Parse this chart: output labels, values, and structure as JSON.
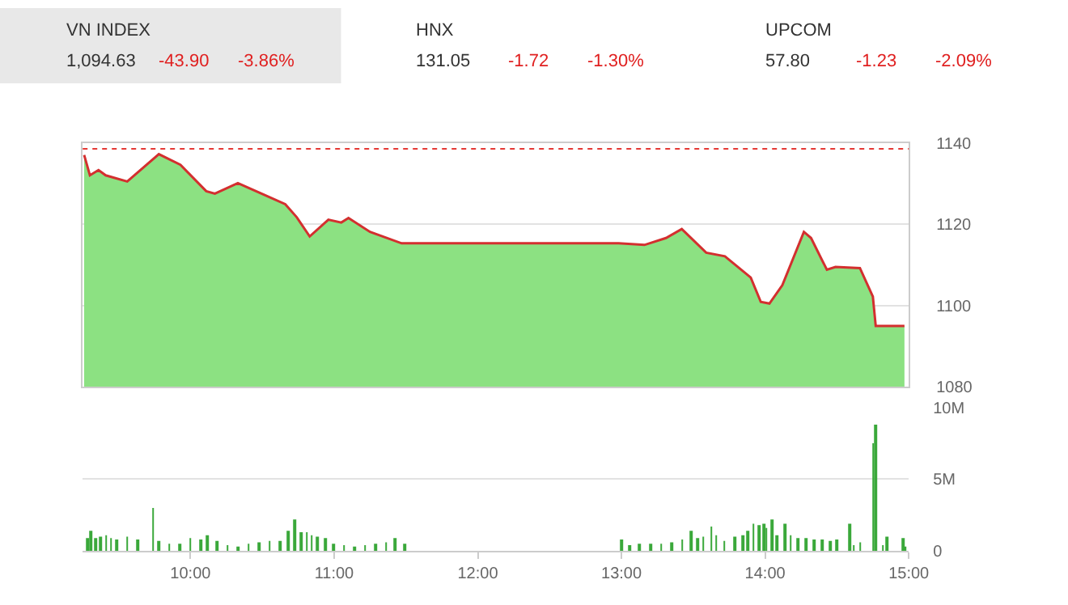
{
  "chart_data": [
    {
      "type": "other",
      "title": "VN INDEX",
      "annotations": [
        "1,094.63",
        "-43.90",
        "-3.86%"
      ]
    },
    {
      "type": "other",
      "title": "HNX",
      "annotations": [
        "131.05",
        "-1.72",
        "-1.30%"
      ]
    },
    {
      "type": "other",
      "title": "UPCOM",
      "annotations": [
        "57.80",
        "-1.23",
        "-2.09%"
      ]
    },
    {
      "type": "area",
      "x": [
        9.26,
        9.3,
        9.36,
        9.41,
        9.56,
        9.78,
        9.93,
        10.11,
        10.17,
        10.33,
        10.52,
        10.66,
        10.74,
        10.83,
        10.96,
        11.05,
        11.1,
        11.25,
        11.47,
        12.98,
        13.16,
        13.31,
        13.42,
        13.59,
        13.72,
        13.9,
        13.97,
        14.03,
        14.12,
        14.27,
        14.32,
        14.43,
        14.49,
        14.66,
        14.75,
        14.77,
        14.97
      ],
      "series": [
        {
          "color": "#8ce182",
          "values": [
            1137,
            1132,
            1133.3,
            1132,
            1130.5,
            1137.2,
            1134.6,
            1128.1,
            1127.5,
            1130.1,
            1127.1,
            1124.9,
            1121.7,
            1117,
            1121.1,
            1120.4,
            1121.5,
            1118.1,
            1115.3,
            1115.3,
            1114.9,
            1116.6,
            1118.8,
            1113,
            1112.1,
            1106.9,
            1100.9,
            1100.5,
            1105,
            1118.1,
            1116.6,
            1108.8,
            1109.5,
            1109.2,
            1102.2,
            1095,
            1095
          ]
        },
        {
          "type": "line",
          "color": "#d32f2f",
          "values": [
            1137,
            1132,
            1133.3,
            1132,
            1130.5,
            1137.2,
            1134.6,
            1128.1,
            1127.5,
            1130.1,
            1127.1,
            1124.9,
            1121.7,
            1117,
            1121.1,
            1120.4,
            1121.5,
            1118.1,
            1115.3,
            1115.3,
            1114.9,
            1116.6,
            1118.8,
            1113,
            1112.1,
            1106.9,
            1100.9,
            1100.5,
            1105,
            1118.1,
            1116.6,
            1108.8,
            1109.5,
            1109.2,
            1102.2,
            1095,
            1095
          ]
        }
      ],
      "xlim": [
        9.25,
        15.0
      ],
      "ylim": [
        1080,
        1140
      ],
      "yticks": [
        1080,
        1100,
        1120,
        1140
      ],
      "tick_labels": "y",
      "grid": "y",
      "ref_lines": [
        {
          "axis": "y",
          "value": 1138.5,
          "color": "#e53935",
          "line_style": "dotted"
        }
      ]
    },
    {
      "type": "bar",
      "x": [
        9.283,
        9.308,
        9.338,
        9.374,
        9.412,
        9.448,
        9.485,
        9.558,
        9.632,
        9.742,
        9.779,
        9.853,
        9.926,
        10.0,
        10.074,
        10.118,
        10.184,
        10.257,
        10.331,
        10.405,
        10.478,
        10.552,
        10.626,
        10.681,
        10.728,
        10.773,
        10.809,
        10.846,
        10.883,
        10.938,
        10.993,
        11.067,
        11.14,
        11.214,
        11.288,
        11.361,
        11.427,
        11.49,
        12.998,
        13.054,
        13.127,
        13.201,
        13.275,
        13.348,
        13.422,
        13.488,
        13.532,
        13.569,
        13.624,
        13.661,
        13.716,
        13.79,
        13.845,
        13.882,
        13.918,
        13.955,
        13.992,
        14.01,
        14.047,
        14.084,
        14.139,
        14.176,
        14.231,
        14.286,
        14.342,
        14.396,
        14.452,
        14.497,
        14.588,
        14.617,
        14.661,
        14.754,
        14.768,
        14.82,
        14.849,
        14.96,
        14.975
      ],
      "series": [
        {
          "color": "#3aa83a",
          "values": [
            0.9,
            1.4,
            0.9,
            1.0,
            1.1,
            0.9,
            0.8,
            1.0,
            0.8,
            3.0,
            0.7,
            0.5,
            0.5,
            0.9,
            0.8,
            1.1,
            0.7,
            0.4,
            0.3,
            0.5,
            0.6,
            0.7,
            0.7,
            1.4,
            2.2,
            1.3,
            1.3,
            1.1,
            1.0,
            0.9,
            0.5,
            0.4,
            0.3,
            0.4,
            0.5,
            0.6,
            0.9,
            0.5,
            0.8,
            0.4,
            0.5,
            0.5,
            0.5,
            0.6,
            0.8,
            1.4,
            0.9,
            1.0,
            1.7,
            1.1,
            0.7,
            1.0,
            1.1,
            1.4,
            1.9,
            1.8,
            1.9,
            1.6,
            2.2,
            1.1,
            1.9,
            1.1,
            0.9,
            0.9,
            0.8,
            0.8,
            0.7,
            0.8,
            1.9,
            0.4,
            0.6,
            7.5,
            8.8,
            0.4,
            1.0,
            0.9,
            0.3
          ]
        }
      ],
      "xlim": [
        9.25,
        15.0
      ],
      "xticks": [
        {
          "value": 10,
          "label": "10:00"
        },
        {
          "value": 11,
          "label": "11:00"
        },
        {
          "value": 12,
          "label": "12:00"
        },
        {
          "value": 13,
          "label": "13:00"
        },
        {
          "value": 14,
          "label": "14:00"
        },
        {
          "value": 15,
          "label": "15:00"
        }
      ],
      "ylim": [
        0,
        10
      ],
      "yticks": [
        {
          "value": 0,
          "label": "0"
        },
        {
          "value": 5,
          "label": "5M"
        },
        {
          "value": 10,
          "label": "10M"
        }
      ],
      "grid": "y"
    }
  ]
}
